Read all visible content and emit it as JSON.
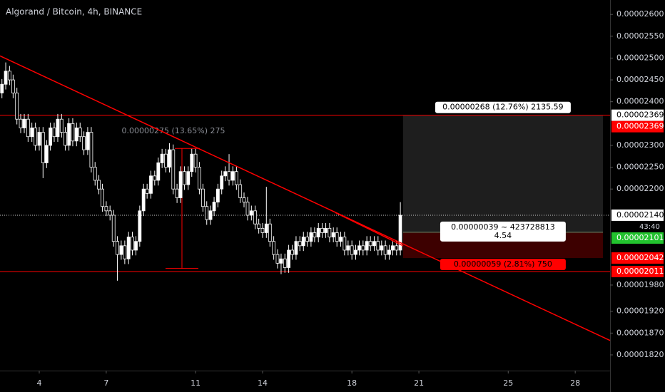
{
  "chart_data": {
    "type": "candlestick",
    "title": "Algorand / Bitcoin, 4h, BINANCE",
    "up_color": "#ffffff",
    "down_color": "#000000",
    "xlim": [
      2.243,
      29.56
    ],
    "xticks": [
      4,
      7,
      11,
      14,
      18,
      21,
      25,
      28
    ],
    "ylim": [
      1.784e-05,
      2.633e-05
    ],
    "yticks": [
      {
        "value": 2.6e-05,
        "label": "0.00002600"
      },
      {
        "value": 2.55e-05,
        "label": "0.00002550"
      },
      {
        "value": 2.5e-05,
        "label": "0.00002500"
      },
      {
        "value": 2.45e-05,
        "label": "0.00002450"
      },
      {
        "value": 2.4e-05,
        "label": "0.00002400"
      },
      {
        "value": 2.3e-05,
        "label": "0.00002300"
      },
      {
        "value": 2.25e-05,
        "label": "0.00002250"
      },
      {
        "value": 2.2e-05,
        "label": "0.00002200"
      },
      {
        "value": 1.98e-05,
        "label": "0.00001980"
      },
      {
        "value": 1.92e-05,
        "label": "0.00001920"
      },
      {
        "value": 1.87e-05,
        "label": "0.00001870"
      },
      {
        "value": 1.82e-05,
        "label": "0.00001820"
      }
    ],
    "x": [
      2.33,
      2.5,
      2.67,
      2.83,
      3,
      3.17,
      3.33,
      3.5,
      3.67,
      3.83,
      4,
      4.17,
      4.33,
      4.5,
      4.67,
      4.83,
      5,
      5.17,
      5.33,
      5.5,
      5.67,
      5.83,
      6,
      6.17,
      6.33,
      6.5,
      6.67,
      6.83,
      7,
      7.17,
      7.33,
      7.5,
      7.67,
      7.83,
      8,
      8.17,
      8.33,
      8.5,
      8.67,
      8.83,
      9,
      9.17,
      9.33,
      9.5,
      9.67,
      9.83,
      10,
      10.17,
      10.33,
      10.5,
      10.67,
      10.83,
      11,
      11.17,
      11.33,
      11.5,
      11.67,
      11.83,
      12,
      12.17,
      12.33,
      12.5,
      12.67,
      12.83,
      13,
      13.17,
      13.33,
      13.5,
      13.67,
      13.83,
      14,
      14.17,
      14.33,
      14.5,
      14.67,
      14.83,
      15,
      15.17,
      15.33,
      15.5,
      15.67,
      15.83,
      16,
      16.17,
      16.33,
      16.5,
      16.67,
      16.83,
      17,
      17.17,
      17.33,
      17.5,
      17.67,
      17.83,
      18,
      18.17,
      18.33,
      18.5,
      18.67,
      18.83,
      19,
      19.17,
      19.33,
      19.5,
      19.67,
      19.83,
      20,
      20.17
    ],
    "open": [
      2.42e-05,
      2.44e-05,
      2.47e-05,
      2.45e-05,
      2.42e-05,
      2.36e-05,
      2.34e-05,
      2.36e-05,
      2.32e-05,
      2.34e-05,
      2.3e-05,
      2.33e-05,
      2.26e-05,
      2.3e-05,
      2.34e-05,
      2.32e-05,
      2.36e-05,
      2.33e-05,
      2.3e-05,
      2.35e-05,
      2.31e-05,
      2.34e-05,
      2.32e-05,
      2.29e-05,
      2.33e-05,
      2.25e-05,
      2.22e-05,
      2.2e-05,
      2.16e-05,
      2.15e-05,
      2.14e-05,
      2.08e-05,
      2.05e-05,
      2.07e-05,
      2.04e-05,
      2.09e-05,
      2.06e-05,
      2.08e-05,
      2.15e-05,
      2.2e-05,
      2.19e-05,
      2.23e-05,
      2.22e-05,
      2.26e-05,
      2.28e-05,
      2.25e-05,
      2.29e-05,
      2.2e-05,
      2.18e-05,
      2.24e-05,
      2.21e-05,
      2.24e-05,
      2.28e-05,
      2.25e-05,
      2.2e-05,
      2.16e-05,
      2.13e-05,
      2.15e-05,
      2.17e-05,
      2.2e-05,
      2.23e-05,
      2.24e-05,
      2.22e-05,
      2.24e-05,
      2.21e-05,
      2.18e-05,
      2.17e-05,
      2.14e-05,
      2.15e-05,
      2.12e-05,
      2.11e-05,
      2.1e-05,
      2.12e-05,
      2.08e-05,
      2.05e-05,
      2.03e-05,
      2.04e-05,
      2.02e-05,
      2.06e-05,
      2.05e-05,
      2.08e-05,
      2.07e-05,
      2.09e-05,
      2.08e-05,
      2.1e-05,
      2.09e-05,
      2.11e-05,
      2.1e-05,
      2.11e-05,
      2.09e-05,
      2.1e-05,
      2.08e-05,
      2.09e-05,
      2.06e-05,
      2.07e-05,
      2.05e-05,
      2.06e-05,
      2.07e-05,
      2.06e-05,
      2.08e-05,
      2.07e-05,
      2.08e-05,
      2.06e-05,
      2.07e-05,
      2.05e-05,
      2.06e-05,
      2.07e-05,
      2.06e-05
    ],
    "high": [
      2.452e-05,
      2.49e-05,
      2.482e-05,
      2.462e-05,
      2.432e-05,
      2.372e-05,
      2.372e-05,
      2.372e-05,
      2.352e-05,
      2.352e-05,
      2.342e-05,
      2.342e-05,
      2.312e-05,
      2.352e-05,
      2.352e-05,
      2.372e-05,
      2.372e-05,
      2.342e-05,
      2.362e-05,
      2.362e-05,
      2.352e-05,
      2.352e-05,
      2.332e-05,
      2.342e-05,
      2.342e-05,
      2.262e-05,
      2.232e-05,
      2.212e-05,
      2.172e-05,
      2.162e-05,
      2.152e-05,
      2.092e-05,
      2.082e-05,
      2.082e-05,
      2.102e-05,
      2.102e-05,
      2.092e-05,
      2.162e-05,
      2.212e-05,
      2.212e-05,
      2.242e-05,
      2.242e-05,
      2.272e-05,
      2.292e-05,
      2.292e-05,
      2.305e-05,
      2.302e-05,
      2.212e-05,
      2.252e-05,
      2.252e-05,
      2.252e-05,
      2.292e-05,
      2.292e-05,
      2.262e-05,
      2.212e-05,
      2.172e-05,
      2.162e-05,
      2.182e-05,
      2.212e-05,
      2.242e-05,
      2.252e-05,
      2.28e-05,
      2.252e-05,
      2.252e-05,
      2.222e-05,
      2.192e-05,
      2.182e-05,
      2.162e-05,
      2.162e-05,
      2.132e-05,
      2.122e-05,
      2.205e-05,
      2.132e-05,
      2.092e-05,
      2.062e-05,
      2.052e-05,
      2.052e-05,
      2.072e-05,
      2.072e-05,
      2.092e-05,
      2.092e-05,
      2.102e-05,
      2.102e-05,
      2.112e-05,
      2.112e-05,
      2.122e-05,
      2.122e-05,
      2.122e-05,
      2.122e-05,
      2.112e-05,
      2.112e-05,
      2.102e-05,
      2.102e-05,
      2.082e-05,
      2.082e-05,
      2.072e-05,
      2.082e-05,
      2.082e-05,
      2.092e-05,
      2.092e-05,
      2.092e-05,
      2.092e-05,
      2.082e-05,
      2.082e-05,
      2.072e-05,
      2.082e-05,
      2.082e-05,
      2.17e-05
    ],
    "low": [
      2.408e-05,
      2.428e-05,
      2.438e-05,
      2.408e-05,
      2.348e-05,
      2.328e-05,
      2.328e-05,
      2.308e-05,
      2.308e-05,
      2.288e-05,
      2.288e-05,
      2.225e-05,
      2.248e-05,
      2.288e-05,
      2.308e-05,
      2.308e-05,
      2.318e-05,
      2.288e-05,
      2.288e-05,
      2.298e-05,
      2.298e-05,
      2.308e-05,
      2.278e-05,
      2.278e-05,
      2.238e-05,
      2.208e-05,
      2.188e-05,
      2.148e-05,
      2.138e-05,
      2.128e-05,
      2.068e-05,
      1.99e-05,
      2.038e-05,
      2.028e-05,
      2.028e-05,
      2.048e-05,
      2.048e-05,
      2.068e-05,
      2.138e-05,
      2.178e-05,
      2.178e-05,
      2.208e-05,
      2.208e-05,
      2.248e-05,
      2.238e-05,
      2.238e-05,
      2.188e-05,
      2.168e-05,
      2.168e-05,
      2.198e-05,
      2.198e-05,
      2.228e-05,
      2.238e-05,
      2.188e-05,
      2.148e-05,
      2.118e-05,
      2.118e-05,
      2.138e-05,
      2.158e-05,
      2.188e-05,
      2.218e-05,
      2.208e-05,
      2.208e-05,
      2.198e-05,
      2.168e-05,
      2.158e-05,
      2.128e-05,
      2.128e-05,
      2.108e-05,
      2.098e-05,
      2.088e-05,
      2.088e-05,
      2.068e-05,
      2.038e-05,
      2.018e-05,
      2.005e-05,
      2.008e-05,
      2.008e-05,
      2.038e-05,
      2.038e-05,
      2.058e-05,
      2.058e-05,
      2.068e-05,
      2.068e-05,
      2.078e-05,
      2.078e-05,
      2.088e-05,
      2.088e-05,
      2.078e-05,
      2.078e-05,
      2.068e-05,
      2.068e-05,
      2.048e-05,
      2.048e-05,
      2.038e-05,
      2.038e-05,
      2.048e-05,
      2.048e-05,
      2.048e-05,
      2.058e-05,
      2.058e-05,
      2.048e-05,
      2.048e-05,
      2.038e-05,
      2.038e-05,
      2.048e-05,
      2.048e-05,
      2.048e-05
    ],
    "close": [
      2.44e-05,
      2.47e-05,
      2.45e-05,
      2.42e-05,
      2.36e-05,
      2.34e-05,
      2.36e-05,
      2.32e-05,
      2.34e-05,
      2.3e-05,
      2.33e-05,
      2.26e-05,
      2.3e-05,
      2.34e-05,
      2.32e-05,
      2.36e-05,
      2.33e-05,
      2.3e-05,
      2.35e-05,
      2.31e-05,
      2.34e-05,
      2.32e-05,
      2.29e-05,
      2.33e-05,
      2.25e-05,
      2.22e-05,
      2.2e-05,
      2.16e-05,
      2.15e-05,
      2.14e-05,
      2.08e-05,
      2.05e-05,
      2.07e-05,
      2.04e-05,
      2.09e-05,
      2.06e-05,
      2.08e-05,
      2.15e-05,
      2.2e-05,
      2.19e-05,
      2.23e-05,
      2.22e-05,
      2.26e-05,
      2.28e-05,
      2.25e-05,
      2.29e-05,
      2.2e-05,
      2.18e-05,
      2.24e-05,
      2.21e-05,
      2.24e-05,
      2.28e-05,
      2.25e-05,
      2.2e-05,
      2.16e-05,
      2.13e-05,
      2.15e-05,
      2.17e-05,
      2.2e-05,
      2.23e-05,
      2.24e-05,
      2.22e-05,
      2.24e-05,
      2.21e-05,
      2.18e-05,
      2.17e-05,
      2.14e-05,
      2.15e-05,
      2.12e-05,
      2.11e-05,
      2.1e-05,
      2.12e-05,
      2.08e-05,
      2.05e-05,
      2.03e-05,
      2.04e-05,
      2.02e-05,
      2.06e-05,
      2.05e-05,
      2.08e-05,
      2.07e-05,
      2.09e-05,
      2.08e-05,
      2.1e-05,
      2.09e-05,
      2.11e-05,
      2.1e-05,
      2.11e-05,
      2.09e-05,
      2.1e-05,
      2.08e-05,
      2.09e-05,
      2.06e-05,
      2.07e-05,
      2.05e-05,
      2.06e-05,
      2.07e-05,
      2.06e-05,
      2.08e-05,
      2.07e-05,
      2.08e-05,
      2.06e-05,
      2.07e-05,
      2.05e-05,
      2.06e-05,
      2.07e-05,
      2.06e-05,
      2.14e-05
    ],
    "hlines": [
      {
        "value": 2.369e-05,
        "color": "#ff0000"
      },
      {
        "value": 2.011e-05,
        "color": "#ff0000"
      }
    ],
    "trendlines": [
      {
        "color": "#ff0000",
        "points": [
          [
            2.243,
            2.505e-05
          ],
          [
            29.56,
            1.853e-05
          ]
        ]
      },
      {
        "color": "#ff0000",
        "points": [
          [
            17.26,
            2.146e-05
          ],
          [
            20.29,
            2.07e-05
          ]
        ]
      }
    ],
    "measure": {
      "x": 10.39,
      "from": 2.018e-05,
      "to": 2.293e-05,
      "color": "#ff0000",
      "label": "0.00000275 (13.65%) 275"
    },
    "position": {
      "x": [
        20.29,
        29.24
      ],
      "entry": 2.101e-05,
      "target": 2.369e-05,
      "stop": 2.042e-05,
      "target_label": "0.00000268 (12.76%) 2135.59",
      "center_label": [
        "0.00000039 ~ 423728813",
        "4.54"
      ],
      "stop_label": "0.00000059 (2.81%) 750"
    },
    "markers": [
      {
        "value": 2.369e-05,
        "label": "0.00002369",
        "color": "#ffffff"
      },
      {
        "value": 2.369e-05,
        "label": "0.00002369",
        "color": "#ff0000"
      },
      {
        "value": 2.14e-05,
        "label": "0.00002140",
        "color": "#ffffff"
      },
      {
        "value": 2.101e-05,
        "label": "0.00002101",
        "color": "#22c32e"
      },
      {
        "value": 2.042e-05,
        "label": "0.00002042",
        "color": "#ff0000"
      },
      {
        "value": 2.011e-05,
        "label": "0.00002011",
        "color": "#ff0000"
      }
    ],
    "countdown": "43:40"
  }
}
